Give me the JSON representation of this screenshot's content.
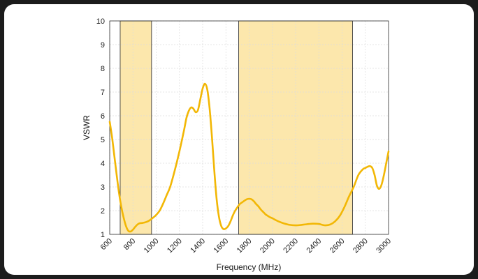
{
  "chart_data": {
    "type": "line",
    "xlabel": "Frequency (MHz)",
    "ylabel": "VSWR",
    "xlim": [
      600,
      3000
    ],
    "ylim": [
      1,
      10
    ],
    "x_ticks": [
      600,
      800,
      1000,
      1200,
      1400,
      1600,
      1800,
      2000,
      2200,
      2400,
      2600,
      2800,
      3000
    ],
    "y_ticks": [
      1,
      2,
      3,
      4,
      5,
      6,
      7,
      8,
      9,
      10
    ],
    "grid": true,
    "shaded_bands": [
      {
        "x_start": 690,
        "x_end": 960
      },
      {
        "x_start": 1710,
        "x_end": 2690
      }
    ],
    "series": [
      {
        "color": "#f2b705",
        "x": [
          600,
          620,
          640,
          660,
          680,
          700,
          720,
          740,
          760,
          780,
          800,
          820,
          840,
          860,
          880,
          900,
          920,
          940,
          960,
          980,
          1000,
          1030,
          1060,
          1090,
          1120,
          1160,
          1200,
          1240,
          1260,
          1280,
          1300,
          1320,
          1340,
          1360,
          1380,
          1400,
          1420,
          1440,
          1460,
          1480,
          1500,
          1520,
          1540,
          1560,
          1580,
          1600,
          1620,
          1640,
          1660,
          1680,
          1700,
          1720,
          1740,
          1760,
          1780,
          1800,
          1820,
          1840,
          1860,
          1880,
          1900,
          1920,
          1940,
          1960,
          1980,
          2000,
          2030,
          2060,
          2100,
          2150,
          2200,
          2250,
          2300,
          2350,
          2400,
          2430,
          2460,
          2500,
          2540,
          2580,
          2620,
          2660,
          2700,
          2740,
          2780,
          2800,
          2820,
          2840,
          2860,
          2880,
          2900,
          2920,
          2940,
          2960,
          2980,
          3000
        ],
        "y": [
          5.75,
          5.1,
          4.3,
          3.5,
          2.75,
          2.15,
          1.7,
          1.35,
          1.15,
          1.12,
          1.2,
          1.32,
          1.42,
          1.47,
          1.48,
          1.5,
          1.53,
          1.58,
          1.65,
          1.73,
          1.82,
          2.0,
          2.3,
          2.65,
          3.0,
          3.7,
          4.5,
          5.4,
          5.9,
          6.2,
          6.35,
          6.3,
          6.15,
          6.25,
          6.7,
          7.15,
          7.35,
          7.1,
          6.3,
          5.1,
          3.7,
          2.5,
          1.75,
          1.35,
          1.22,
          1.25,
          1.35,
          1.55,
          1.8,
          2.0,
          2.15,
          2.28,
          2.35,
          2.42,
          2.48,
          2.5,
          2.48,
          2.4,
          2.28,
          2.18,
          2.05,
          1.95,
          1.85,
          1.78,
          1.72,
          1.68,
          1.6,
          1.53,
          1.46,
          1.4,
          1.38,
          1.4,
          1.43,
          1.45,
          1.44,
          1.4,
          1.38,
          1.42,
          1.55,
          1.78,
          2.15,
          2.6,
          3.0,
          3.5,
          3.75,
          3.8,
          3.85,
          3.88,
          3.8,
          3.5,
          3.05,
          2.92,
          3.1,
          3.5,
          4.0,
          4.5
        ]
      }
    ]
  }
}
